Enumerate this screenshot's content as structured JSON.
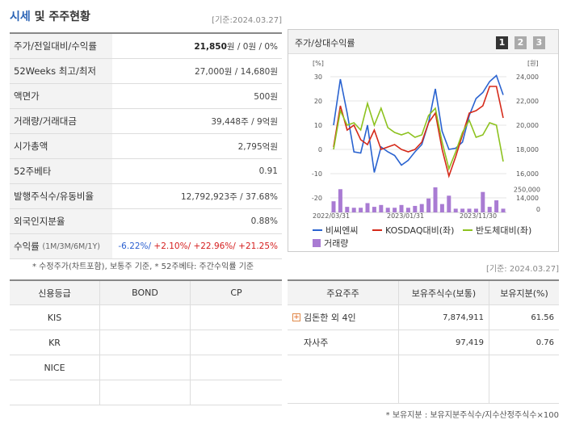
{
  "header": {
    "title_accent": "시세",
    "title_rest": " 및 주주현황",
    "date": "[기준:2024.03.27]"
  },
  "price_table": [
    {
      "label": "주가/전일대비/수익률",
      "value_bold": "21,850",
      "value_rest": "원 / 0원 / 0%"
    },
    {
      "label": "52Weeks 최고/최저",
      "value": "27,000원 / 14,680원"
    },
    {
      "label": "액면가",
      "value": "500원"
    },
    {
      "label": "거래량/거래대금",
      "value": "39,448주 / 9억원"
    },
    {
      "label": "시가총액",
      "value": "2,795억원"
    },
    {
      "label": "52주베타",
      "value": "0.91"
    },
    {
      "label": "발행주식수/유동비율",
      "value": "12,792,923주 / 37.68%"
    },
    {
      "label": "외국인지분율",
      "value": "0.88%"
    }
  ],
  "returns": {
    "label": "수익률",
    "label_sub": "(1M/3M/6M/1Y)",
    "r1": "-6.22%/",
    "r2": " +2.10%/",
    "r3": " +22.96%/",
    "r4": " +21.25%"
  },
  "note1": "* 수정주가(차트포함), 보통주 기준, * 52주베타: 주간수익률 기준",
  "chart_panel": {
    "title": "주가/상대수익률",
    "period_buttons": [
      "1",
      "2",
      "3"
    ],
    "active_button": "1",
    "legend": [
      {
        "label": "비씨엔씨",
        "color": "#2a63d0"
      },
      {
        "label": "KOSDAQ대비(좌)",
        "color": "#d52a1a"
      },
      {
        "label": "반도체대비(좌)",
        "color": "#8dc21f"
      },
      {
        "label": "거래량",
        "color": "#a97bd3"
      }
    ]
  },
  "chart_data": {
    "type": "line",
    "left_axis": {
      "unit": "[%]",
      "ticks": [
        "30",
        "20",
        "10",
        "0",
        "-10",
        "-20"
      ],
      "range": [
        -20,
        30
      ]
    },
    "right_axis": {
      "unit": "[원]",
      "ticks": [
        "24,000",
        "22,000",
        "20,000",
        "18,000",
        "16,000",
        "14,000"
      ],
      "range": [
        14000,
        24000
      ]
    },
    "volume_axis": {
      "ticks": [
        "250,000",
        "0"
      ],
      "range": [
        0,
        400000
      ]
    },
    "x_labels": [
      "2022/03/31",
      "2023/01/31",
      "2023/11/30"
    ],
    "series": [
      {
        "name": "비씨엔씨",
        "axis": "right",
        "color": "#2a63d0",
        "values": [
          20000,
          23800,
          21000,
          17800,
          17700,
          20000,
          16100,
          18200,
          17800,
          17500,
          16700,
          17100,
          17800,
          18400,
          20200,
          23000,
          19500,
          18000,
          18100,
          18600,
          20800,
          22200,
          22700,
          23600,
          24100,
          22500
        ]
      },
      {
        "name": "KOSDAQ대비(좌)",
        "axis": "left",
        "color": "#d52a1a",
        "values": [
          1,
          18,
          8,
          10,
          4,
          2,
          8,
          0,
          1,
          2,
          0,
          -1,
          0,
          3,
          11,
          15,
          0,
          -11,
          -3,
          6,
          15,
          16,
          18,
          26,
          26,
          13
        ]
      },
      {
        "name": "반도체대비(좌)",
        "axis": "left",
        "color": "#8dc21f",
        "values": [
          0,
          16,
          10,
          11,
          8,
          19,
          10,
          17,
          9,
          7,
          6,
          7,
          5,
          6,
          14,
          17,
          3,
          -8,
          -1,
          7,
          12,
          5,
          6,
          11,
          10,
          -5
        ]
      },
      {
        "name": "거래량",
        "axis": "volume",
        "color": "#a97bd3",
        "values": [
          120000,
          250000,
          60000,
          50000,
          50000,
          100000,
          60000,
          80000,
          50000,
          50000,
          80000,
          50000,
          70000,
          90000,
          150000,
          270000,
          90000,
          180000,
          40000,
          40000,
          40000,
          40000,
          220000,
          60000,
          130000,
          40000
        ]
      }
    ],
    "grid": true
  },
  "date2": "[기준: 2024.03.27]",
  "credit_table": {
    "headers": [
      "신용등급",
      "BOND",
      "CP"
    ],
    "rows": [
      [
        "KIS",
        "",
        ""
      ],
      [
        "KR",
        "",
        ""
      ],
      [
        "NICE",
        "",
        ""
      ],
      [
        "",
        "",
        ""
      ]
    ]
  },
  "holder_table": {
    "headers": [
      "주요주주",
      "보유주식수(보통)",
      "보유지분(%)"
    ],
    "rows": [
      {
        "name": "김돈한 외 4인",
        "shares": "7,874,911",
        "pct": "61.56",
        "expand": true
      },
      {
        "name": "자사주",
        "shares": "97,419",
        "pct": "0.76",
        "expand": false
      }
    ]
  },
  "note2": "* 보유지분 : 보유지분주식수/지수산정주식수×100"
}
